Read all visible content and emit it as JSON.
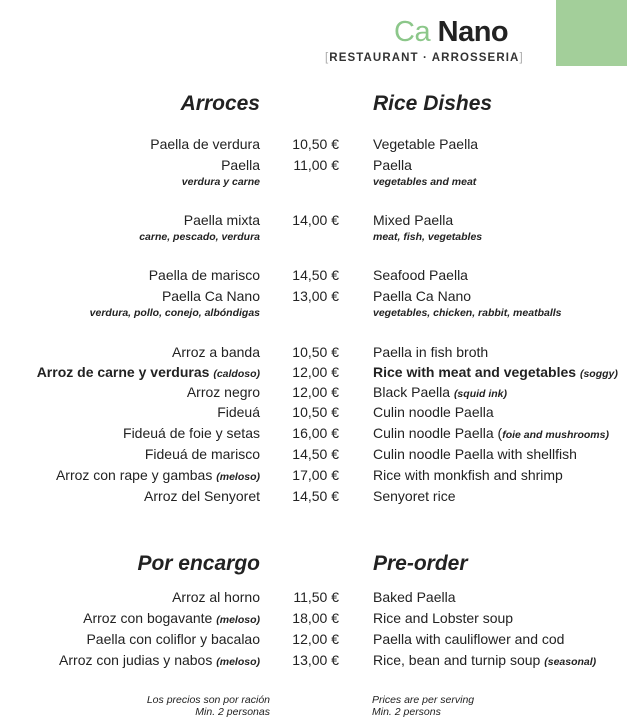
{
  "header": {
    "brand_ca": "Ca",
    "brand_nano": "Nano",
    "tagline_open": "[",
    "tagline": "RESTAURANT · ARROSSERIA",
    "tagline_close": "]",
    "accent_color": "#a3cf9a"
  },
  "sections": [
    {
      "title_es": "Arroces",
      "title_en": "Rice Dishes",
      "items": [
        {
          "es": "Paella de verdura",
          "price": "10,50 €",
          "en": "Vegetable Paella"
        },
        {
          "es": "Paella",
          "price": "11,00 €",
          "en": "Paella",
          "es_sub": "verdura y carne",
          "en_sub": "vegetables and meat"
        },
        {
          "es": "Paella  mixta",
          "price": "14,00 €",
          "en": "Mixed Paella",
          "es_sub": "carne, pescado, verdura",
          "en_sub": "meat, fish, vegetables"
        },
        {
          "es": "Paella de marisco",
          "price": "14,50 €",
          "en": "Seafood Paella"
        },
        {
          "es": "Paella Ca Nano",
          "price": "13,00 €",
          "en": "Paella Ca Nano",
          "es_sub": "verdura, pollo, conejo, albóndigas",
          "en_sub": "vegetables, chicken, rabbit, meatballs"
        },
        {
          "es": "Arroz a banda",
          "price": "10,50 €",
          "en": "Paella in fish broth"
        },
        {
          "es": "Arroz de carne y verduras",
          "es_note": "(caldoso)",
          "price": "12,00 €",
          "en": "Rice with meat and vegetables",
          "en_note": "(soggy)"
        },
        {
          "es": "Arroz negro",
          "price": "12,00 €",
          "en": "Black Paella",
          "en_note": "(squid ink)"
        },
        {
          "es": "Fideuá",
          "price": "10,50 €",
          "en": "Culin noodle Paella"
        },
        {
          "es": "Fideuá de foie y setas",
          "price": "16,00 €",
          "en": "Culin noodle Paella (",
          "en_note": "foie and mushrooms)"
        },
        {
          "es": "Fideuá de marisco",
          "price": "14,50 €",
          "en": "Culin noodle Paella with shellfish"
        },
        {
          "es": "Arroz con rape y gambas",
          "es_note": "(meloso)",
          "price": "17,00 €",
          "en": "Rice with monkfish and shrimp"
        },
        {
          "es": "Arroz del Senyoret",
          "price": "14,50 €",
          "en": "Senyoret rice"
        }
      ]
    },
    {
      "title_es": "Por encargo",
      "title_en": "Pre-order",
      "items": [
        {
          "es": "Arroz al horno",
          "price": "11,50 €",
          "en": "Baked Paella"
        },
        {
          "es": "Arroz con bogavante",
          "es_note": "(meloso)",
          "price": "18,00 €",
          "en": "Rice and Lobster soup"
        },
        {
          "es": "Paella con coliflor y bacalao",
          "price": "12,00 €",
          "en": "Paella with cauliflower and cod"
        },
        {
          "es": "Arroz con judias y nabos",
          "es_note": "(meloso)",
          "price": "13,00 €",
          "en": "Rice, bean and turnip soup",
          "en_note": "(seasonal)"
        }
      ]
    }
  ],
  "footer": {
    "es_line1": "Los precios son por ración",
    "es_line2": "Min. 2 personas",
    "en_line1": "Prices are per serving",
    "en_line2": "Min. 2 persons"
  }
}
